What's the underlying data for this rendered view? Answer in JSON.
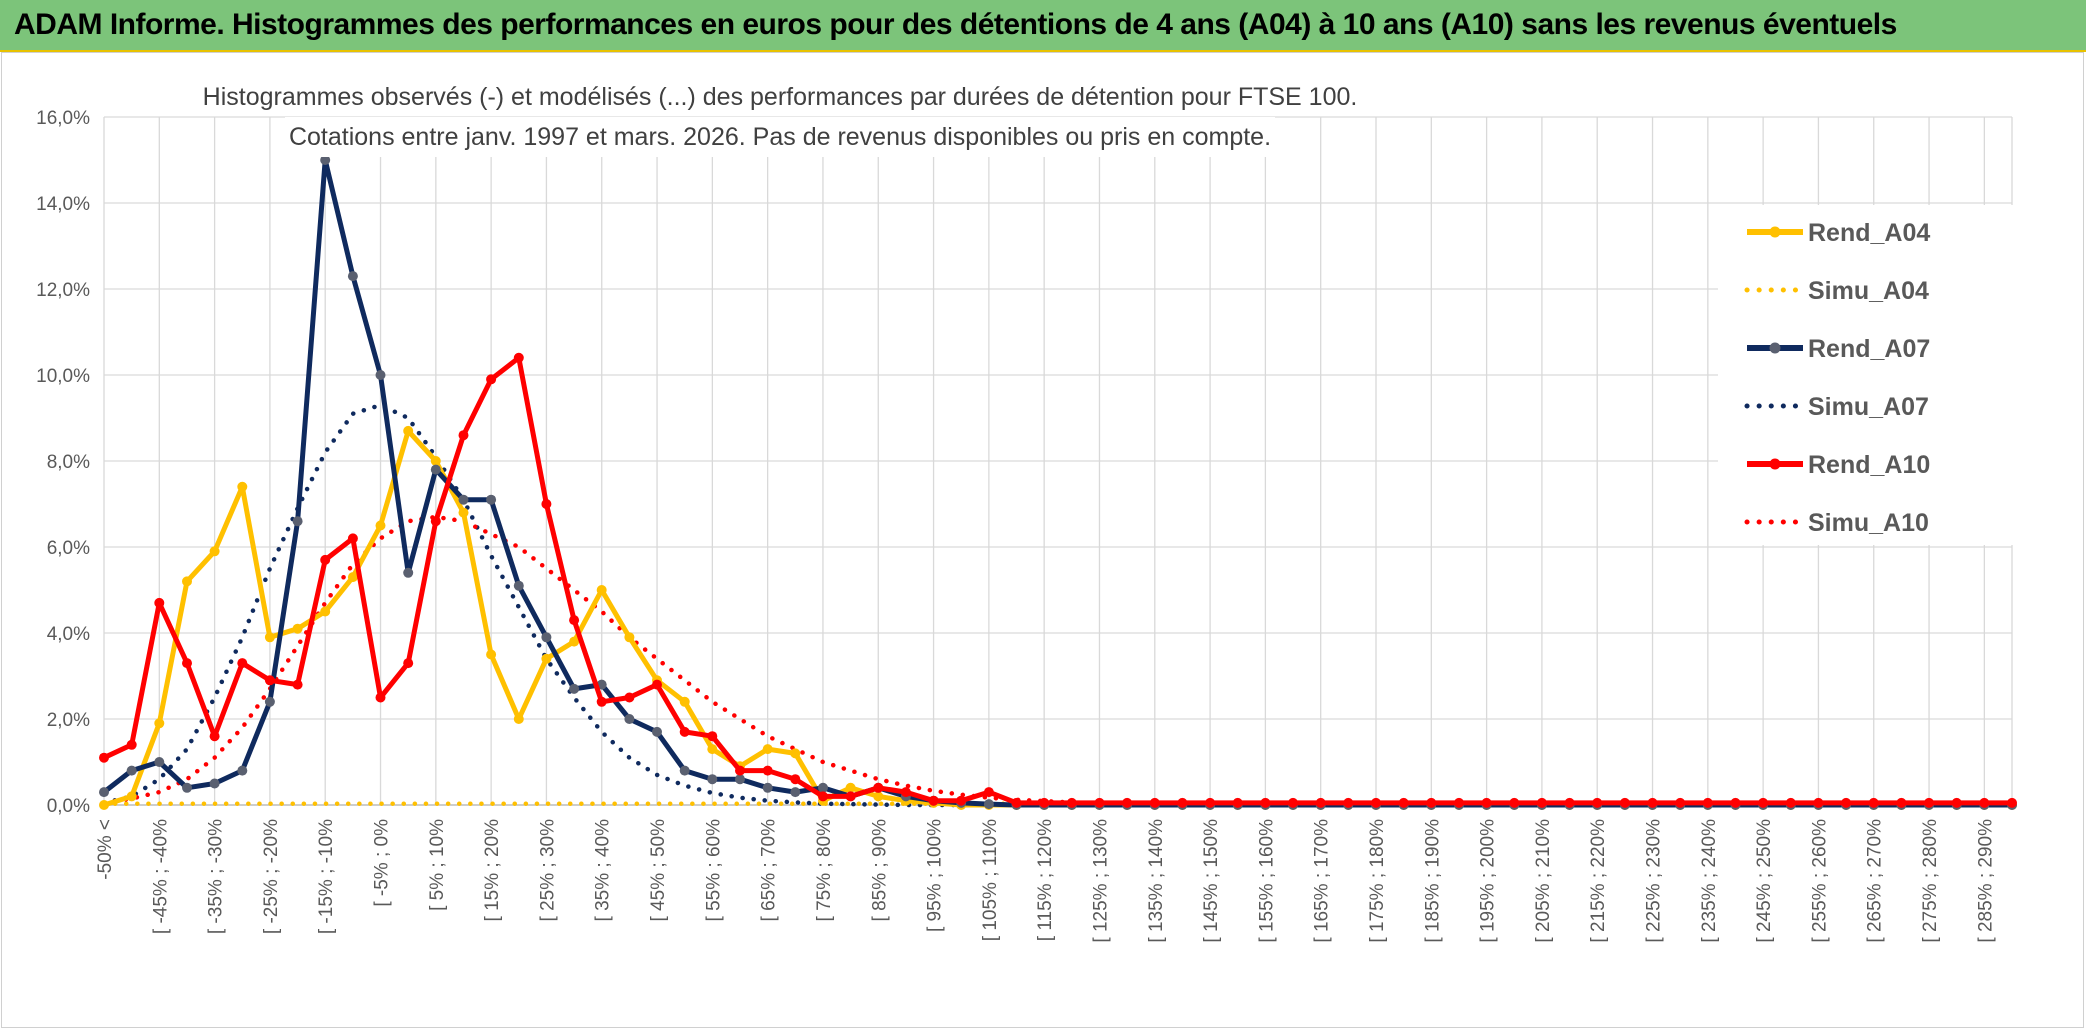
{
  "banner": {
    "title": "ADAM Informe. Histogrammes des performances en euros pour des détentions de 4 ans (A04) à 10 ans (A10) sans les revenus éventuels"
  },
  "chart_data": {
    "type": "line",
    "title_lines": [
      "Histogrammes observés (-) et modélisés (...) des performances par durées de détention pour FTSE 100.",
      "Cotations entre janv. 1997 et mars. 2026. Pas de revenus disponibles ou pris en compte."
    ],
    "ylim": [
      0,
      16
    ],
    "y_ticks": [
      "0,0%",
      "2,0%",
      "4,0%",
      "6,0%",
      "8,0%",
      "10,0%",
      "12,0%",
      "14,0%",
      "16,0%"
    ],
    "categories": [
      "-50% <",
      "[ -50% ; -45%",
      "[ -45% ; -40%",
      "[ -40% ; -35%",
      "[ -35% ; -30%",
      "[ -30% ; -25%",
      "[ -25% ; -20%",
      "[ -20% ; -15%",
      "[ -15% ; -10%",
      "[ -10% ; -5%",
      "[ -5% ; 0%",
      "[ 0% ; 5%",
      "[ 5% ; 10%",
      "[ 10% ; 15%",
      "[ 15% ; 20%",
      "[ 20% ; 25%",
      "[ 25% ; 30%",
      "[ 30% ; 35%",
      "[ 35% ; 40%",
      "[ 40% ; 45%",
      "[ 45% ; 50%",
      "[ 50% ; 55%",
      "[ 55% ; 60%",
      "[ 60% ; 65%",
      "[ 65% ; 70%",
      "[ 70% ; 75%",
      "[ 75% ; 80%",
      "[ 80% ; 85%",
      "[ 85% ; 90%",
      "[ 90% ; 95%",
      "[ 95% ; 100%",
      "[ 100% ; 105%",
      "[ 105% ; 110%",
      "[ 110% ; 115%",
      "[ 115% ; 120%",
      "[ 120% ; 125%",
      "[ 125% ; 130%",
      "[ 130% ; 135%",
      "[ 135% ; 140%",
      "[ 140% ; 145%",
      "[ 145% ; 150%",
      "[ 150% ; 155%",
      "[ 155% ; 160%",
      "[ 160% ; 165%",
      "[ 165% ; 170%",
      "[ 170% ; 175%",
      "[ 175% ; 180%",
      "[ 180% ; 185%",
      "[ 185% ; 190%",
      "[ 190% ; 195%",
      "[ 195% ; 200%",
      "[ 200% ; 205%",
      "[ 205% ; 210%",
      "[ 210% ; 215%",
      "[ 215% ; 220%",
      "[ 220% ; 225%",
      "[ 225% ; 230%",
      "[ 230% ; 235%",
      "[ 235% ; 240%",
      "[ 240% ; 245%",
      "[ 245% ; 250%",
      "[ 250% ; 255%",
      "[ 255% ; 260%",
      "[ 260% ; 265%",
      "[ 265% ; 270%",
      "[ 270% ; 275%",
      "[ 275% ; 280%",
      "[ 280% ; 285%",
      "[ 285% ; 290%",
      "[ 290% ; 295%"
    ],
    "shown_tick_labels": [
      "-50% <",
      "[ -45% ; -40%",
      "[ -35% ; -30%",
      "[ -25% ; -20%",
      "[ -15% ; -10%",
      "[ -5% ; 0%",
      "[ 5% ; 10%",
      "[ 15% ; 20%",
      "[ 25% ; 30%",
      "[ 35% ; 40%",
      "[ 45% ; 50%",
      "[ 55% ; 60%",
      "[ 65% ; 70%",
      "[ 75% ; 80%",
      "[ 85% ; 90%",
      "[ 95% ; 100%",
      "[ 105% ; 110%",
      "[ 115% ; 120%",
      "[ 125% ; 130%",
      "[ 135% ; 140%",
      "[ 145% ; 150%",
      "[ 155% ; 160%",
      "[ 165% ; 170%",
      "[ 175% ; 180%",
      "[ 185% ; 190%",
      "[ 195% ; 200%",
      "[ 205% ; 210%",
      "[ 215% ; 220%",
      "[ 225% ; 230%",
      "[ 235% ; 240%",
      "[ 245% ; 250%",
      "[ 255% ; 260%",
      "[ 265% ; 270%",
      "[ 275% ; 280%",
      "[ 285% ; 290%"
    ],
    "series": [
      {
        "name": "Rend_A04",
        "style": "solid",
        "markers": true,
        "color": "#FFC000",
        "values": [
          0.0,
          0.2,
          1.9,
          5.2,
          5.9,
          7.4,
          3.9,
          4.1,
          4.5,
          5.3,
          6.5,
          8.7,
          8.0,
          6.8,
          3.5,
          2.0,
          3.4,
          3.8,
          5.0,
          3.9,
          2.9,
          2.4,
          1.3,
          0.9,
          1.3,
          1.2,
          0.1,
          0.4,
          0.2,
          0.1,
          0.05,
          0.0,
          0.0,
          0.0,
          0.0,
          0.0,
          0.0,
          0.0,
          0.0,
          0.0,
          0.0,
          0.0,
          0.0,
          0.0,
          0.0,
          0.0,
          0.0,
          0.0,
          0.0,
          0.0,
          0.0,
          0.0,
          0.0,
          0.0,
          0.0,
          0.0,
          0.0,
          0.0,
          0.0,
          0.0,
          0.0,
          0.0,
          0.0,
          0.0,
          0.0,
          0.0,
          0.0,
          0.0,
          0.0,
          0.0
        ]
      },
      {
        "name": "Simu_A04",
        "style": "dotted",
        "markers": false,
        "color": "#FFC000",
        "values": [
          0.03,
          0.03,
          0.03,
          0.03,
          0.03,
          0.03,
          0.03,
          0.03,
          0.03,
          0.03,
          0.03,
          0.03,
          0.03,
          0.03,
          0.03,
          0.03,
          0.03,
          0.03,
          0.03,
          0.03,
          0.03,
          0.03,
          0.03,
          0.03,
          0.03,
          0.03,
          0.03,
          0.03,
          0.03,
          0.03,
          0.03,
          0.03,
          0.03,
          0.03,
          0.03,
          0.03,
          0.03,
          0.03,
          0.03,
          0.03,
          0.03,
          0.03,
          0.03,
          0.03,
          0.03,
          0.03,
          0.03,
          0.03,
          0.03,
          0.03,
          0.03,
          0.03,
          0.03,
          0.03,
          0.03,
          0.03,
          0.03,
          0.03,
          0.03,
          0.03,
          0.03,
          0.03,
          0.03,
          0.03,
          0.03,
          0.03,
          0.03,
          0.03,
          0.03,
          0.03
        ]
      },
      {
        "name": "Rend_A07",
        "style": "solid",
        "markers": true,
        "color": "#0F2A5E",
        "values": [
          0.3,
          0.8,
          1.0,
          0.4,
          0.5,
          0.8,
          2.4,
          6.6,
          15.0,
          12.3,
          10.0,
          5.4,
          7.8,
          7.1,
          7.1,
          5.1,
          3.9,
          2.7,
          2.8,
          2.0,
          1.7,
          0.8,
          0.6,
          0.6,
          0.4,
          0.3,
          0.4,
          0.2,
          0.4,
          0.2,
          0.1,
          0.05,
          0.02,
          0.0,
          0.0,
          0.0,
          0.0,
          0.0,
          0.0,
          0.0,
          0.0,
          0.0,
          0.0,
          0.0,
          0.0,
          0.0,
          0.0,
          0.0,
          0.0,
          0.0,
          0.0,
          0.0,
          0.0,
          0.0,
          0.0,
          0.0,
          0.0,
          0.0,
          0.0,
          0.0,
          0.0,
          0.0,
          0.0,
          0.0,
          0.0,
          0.0,
          0.0,
          0.0,
          0.0,
          0.0
        ]
      },
      {
        "name": "Simu_A07",
        "style": "dotted",
        "markers": false,
        "color": "#0F2A5E",
        "values": [
          0.05,
          0.2,
          0.6,
          1.3,
          2.5,
          3.9,
          5.5,
          6.9,
          8.2,
          9.1,
          9.3,
          9.0,
          8.1,
          7.1,
          5.8,
          4.6,
          3.4,
          2.5,
          1.7,
          1.1,
          0.7,
          0.45,
          0.28,
          0.17,
          0.1,
          0.06,
          0.03,
          0.02,
          0.01,
          0.0,
          0.0,
          0.0,
          0.0,
          0.0,
          0.0,
          0.0,
          0.0,
          0.0,
          0.0,
          0.0,
          0.0,
          0.0,
          0.0,
          0.0,
          0.0,
          0.0,
          0.0,
          0.0,
          0.0,
          0.0,
          0.0,
          0.0,
          0.0,
          0.0,
          0.0,
          0.0,
          0.0,
          0.0,
          0.0,
          0.0,
          0.0,
          0.0,
          0.0,
          0.0,
          0.0,
          0.0,
          0.0,
          0.0,
          0.0,
          0.0
        ]
      },
      {
        "name": "Rend_A10",
        "style": "solid",
        "markers": true,
        "color": "#FF0000",
        "values": [
          1.1,
          1.4,
          4.7,
          3.3,
          1.6,
          3.3,
          2.9,
          2.8,
          5.7,
          6.2,
          2.5,
          3.3,
          6.6,
          8.6,
          9.9,
          10.4,
          7.0,
          4.3,
          2.4,
          2.5,
          2.8,
          1.7,
          1.6,
          0.8,
          0.8,
          0.6,
          0.2,
          0.2,
          0.4,
          0.3,
          0.1,
          0.1,
          0.3,
          0.05,
          0.05,
          0.05,
          0.05,
          0.05,
          0.05,
          0.05,
          0.05,
          0.05,
          0.05,
          0.05,
          0.05,
          0.05,
          0.05,
          0.05,
          0.05,
          0.05,
          0.05,
          0.05,
          0.05,
          0.05,
          0.05,
          0.05,
          0.05,
          0.05,
          0.05,
          0.05,
          0.05,
          0.05,
          0.05,
          0.05,
          0.05,
          0.05,
          0.05,
          0.05,
          0.05,
          0.05
        ]
      },
      {
        "name": "Simu_A10",
        "style": "dotted",
        "markers": false,
        "color": "#FF0000",
        "values": [
          0.05,
          0.15,
          0.3,
          0.6,
          1.1,
          1.8,
          2.7,
          3.7,
          4.7,
          5.6,
          6.2,
          6.6,
          6.7,
          6.6,
          6.3,
          6.0,
          5.5,
          5.0,
          4.5,
          3.9,
          3.4,
          2.9,
          2.4,
          2.0,
          1.6,
          1.3,
          1.0,
          0.8,
          0.6,
          0.45,
          0.33,
          0.24,
          0.17,
          0.12,
          0.09,
          0.06,
          0.04,
          0.03,
          0.02,
          0.01,
          0.01,
          0.0,
          0.0,
          0.0,
          0.0,
          0.0,
          0.0,
          0.0,
          0.0,
          0.0,
          0.0,
          0.0,
          0.0,
          0.0,
          0.0,
          0.0,
          0.0,
          0.0,
          0.0,
          0.0,
          0.0,
          0.0,
          0.0,
          0.0,
          0.0,
          0.0,
          0.0,
          0.0,
          0.0,
          0.0
        ]
      }
    ],
    "legend_position": "right"
  }
}
